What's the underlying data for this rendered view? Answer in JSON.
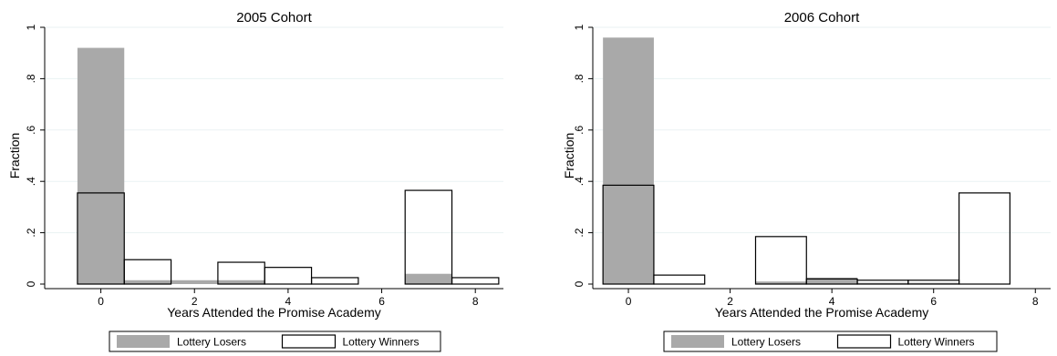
{
  "chart_data": [
    {
      "type": "bar",
      "title": "2005 Cohort",
      "xlabel": "Years Attended the Promise Academy",
      "ylabel": "Fraction",
      "xlim": [
        -1.2,
        8.6
      ],
      "ylim": [
        0,
        1
      ],
      "xticks": [
        {
          "value": 0,
          "label": "0"
        },
        {
          "value": 2,
          "label": "2"
        },
        {
          "value": 4,
          "label": "4"
        },
        {
          "value": 6,
          "label": "6"
        },
        {
          "value": 8,
          "label": "8"
        }
      ],
      "yticks": [
        {
          "value": 0,
          "label": "0"
        },
        {
          "value": 0.2,
          "label": ".2"
        },
        {
          "value": 0.4,
          "label": ".4"
        },
        {
          "value": 0.6,
          "label": ".6"
        },
        {
          "value": 0.8,
          "label": ".8"
        },
        {
          "value": 1,
          "label": "1"
        }
      ],
      "grid": true,
      "legend_position": "bottom",
      "bin_width": 1,
      "x": [
        0,
        1,
        2,
        3,
        4,
        5,
        6,
        7,
        8
      ],
      "series": [
        {
          "name": "Lottery Losers",
          "style": "filled",
          "color": "#a9a9a9",
          "values": [
            0.92,
            0.015,
            0.015,
            0.015,
            0,
            0,
            0,
            0.04,
            0
          ]
        },
        {
          "name": "Lottery Winners",
          "style": "outline",
          "color": "#000000",
          "values": [
            0.355,
            0.095,
            0,
            0.085,
            0.065,
            0.025,
            0,
            0.365,
            0.025
          ]
        }
      ]
    },
    {
      "type": "bar",
      "title": "2006 Cohort",
      "xlabel": "Years Attended the Promise Academy",
      "ylabel": "Fraction",
      "xlim": [
        -0.7,
        8.3
      ],
      "ylim": [
        0,
        1
      ],
      "xticks": [
        {
          "value": 0,
          "label": "0"
        },
        {
          "value": 2,
          "label": "2"
        },
        {
          "value": 4,
          "label": "4"
        },
        {
          "value": 6,
          "label": "6"
        },
        {
          "value": 8,
          "label": "8"
        }
      ],
      "yticks": [
        {
          "value": 0,
          "label": "0"
        },
        {
          "value": 0.2,
          "label": ".2"
        },
        {
          "value": 0.4,
          "label": ".4"
        },
        {
          "value": 0.6,
          "label": ".6"
        },
        {
          "value": 0.8,
          "label": ".8"
        },
        {
          "value": 1,
          "label": "1"
        }
      ],
      "grid": true,
      "legend_position": "bottom",
      "bin_width": 1,
      "x": [
        0,
        1,
        2,
        3,
        4,
        5,
        6,
        7
      ],
      "series": [
        {
          "name": "Lottery Losers",
          "style": "filled",
          "color": "#a9a9a9",
          "values": [
            0.96,
            0,
            0,
            0.01,
            0.025,
            0.005,
            0.005,
            0
          ]
        },
        {
          "name": "Lottery Winners",
          "style": "outline",
          "color": "#000000",
          "values": [
            0.385,
            0.035,
            0,
            0.185,
            0.02,
            0.015,
            0.015,
            0.355
          ]
        }
      ]
    }
  ]
}
